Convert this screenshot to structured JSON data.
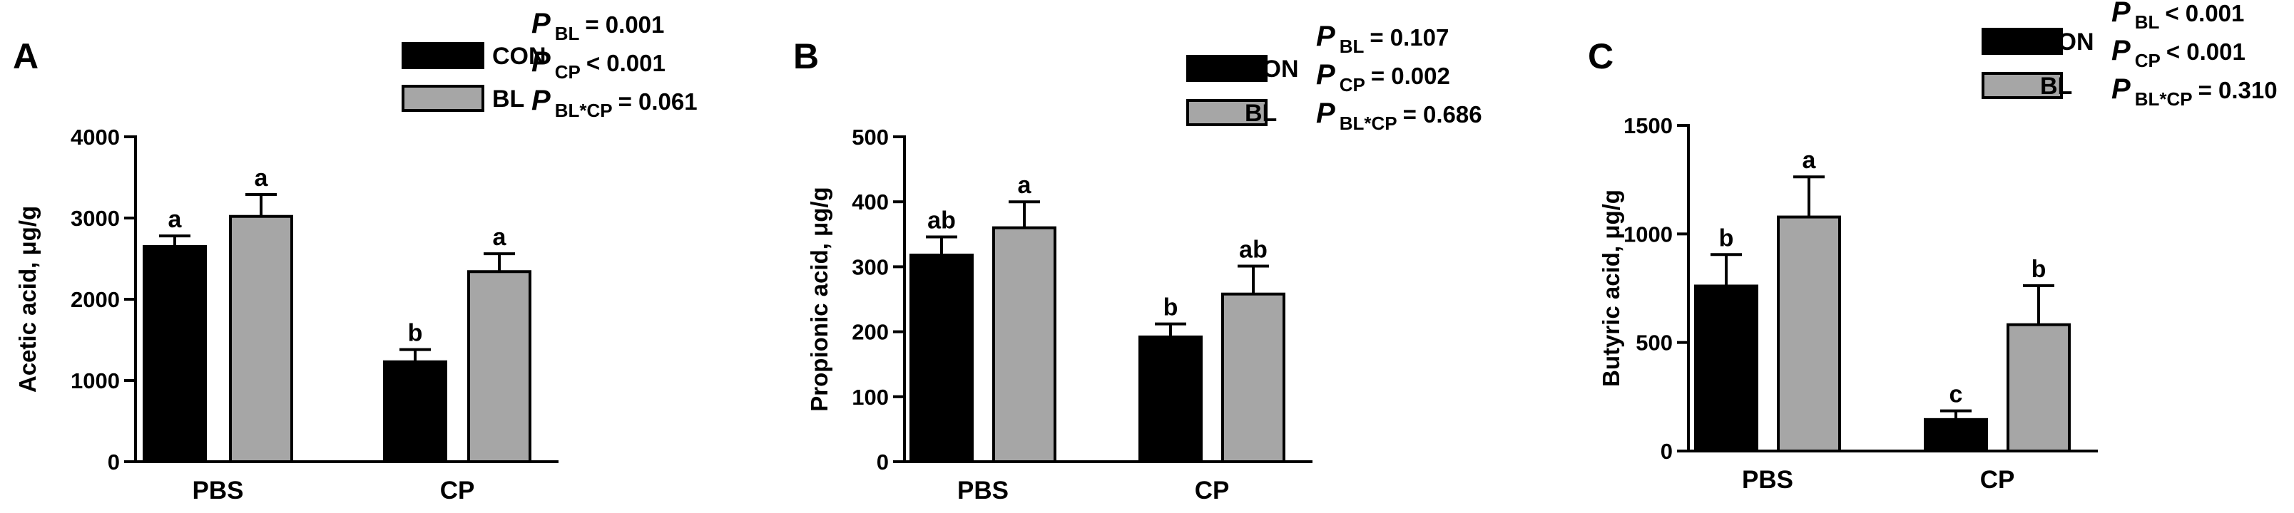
{
  "colors": {
    "con": "#000000",
    "bl": "#a6a6a6"
  },
  "chart_data": [
    {
      "type": "bar",
      "panel": "A",
      "ylabel": "Acetic acid, μg/g",
      "ylim": [
        0,
        4000
      ],
      "yticks": [
        0,
        1000,
        2000,
        3000,
        4000
      ],
      "categories": [
        "PBS",
        "CP"
      ],
      "series": [
        {
          "name": "CON",
          "values": [
            2650,
            1230
          ],
          "errors": [
            130,
            150
          ]
        },
        {
          "name": "BL",
          "values": [
            3020,
            2340
          ],
          "errors": [
            270,
            220
          ]
        }
      ],
      "letters": [
        [
          "a",
          "b"
        ],
        [
          "a",
          "a"
        ]
      ],
      "stats": [
        {
          "p": "P",
          "sub": "BL",
          "text": "= 0.001"
        },
        {
          "p": "P",
          "sub": "CP",
          "text": "< 0.001"
        },
        {
          "p": "P",
          "sub": "BL*CP",
          "text": "= 0.061"
        }
      ]
    },
    {
      "type": "bar",
      "panel": "B",
      "ylabel": "Propionic acid, μg/g",
      "ylim": [
        0,
        500
      ],
      "yticks": [
        0,
        100,
        200,
        300,
        400,
        500
      ],
      "categories": [
        "PBS",
        "CP"
      ],
      "series": [
        {
          "name": "CON",
          "values": [
            318,
            192
          ],
          "errors": [
            28,
            20
          ]
        },
        {
          "name": "BL",
          "values": [
            360,
            258
          ],
          "errors": [
            40,
            43
          ]
        }
      ],
      "letters": [
        [
          "ab",
          "b"
        ],
        [
          "a",
          "ab"
        ]
      ],
      "stats": [
        {
          "p": "P",
          "sub": "BL",
          "text": "= 0.107"
        },
        {
          "p": "P",
          "sub": "CP",
          "text": "= 0.002"
        },
        {
          "p": "P",
          "sub": "BL*CP",
          "text": "= 0.686"
        }
      ]
    },
    {
      "type": "bar",
      "panel": "C",
      "ylabel": "Butyric acid, μg/g",
      "ylim": [
        0,
        1500
      ],
      "yticks": [
        0,
        500,
        1000,
        1500
      ],
      "categories": [
        "PBS",
        "CP"
      ],
      "series": [
        {
          "name": "CON",
          "values": [
            760,
            145
          ],
          "errors": [
            145,
            40
          ]
        },
        {
          "name": "BL",
          "values": [
            1078,
            582
          ],
          "errors": [
            185,
            180
          ]
        }
      ],
      "letters": [
        [
          "b",
          "c"
        ],
        [
          "a",
          "b"
        ]
      ],
      "stats": [
        {
          "p": "P",
          "sub": "BL",
          "text": "< 0.001"
        },
        {
          "p": "P",
          "sub": "CP",
          "text": "< 0.001"
        },
        {
          "p": "P",
          "sub": "BL*CP",
          "text": "= 0.310"
        }
      ]
    }
  ]
}
